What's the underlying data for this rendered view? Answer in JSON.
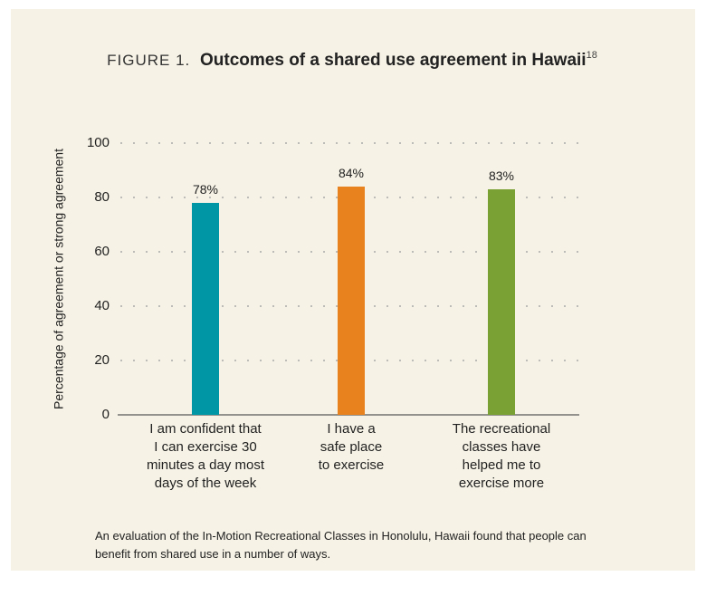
{
  "chart_data": {
    "type": "bar",
    "figure_label": "FIGURE 1.",
    "title": "Outcomes of a shared use agreement in Hawaii",
    "title_note": "18",
    "y_label": "Percentage of agreement or strong agreement",
    "categories": [
      "I am confident that\nI can exercise 30\nminutes a day most\ndays of the week",
      "I have a\nsafe place\nto exercise",
      "The recreational\nclasses have\nhelped me to\nexercise more"
    ],
    "values": [
      78,
      84,
      83
    ],
    "value_labels": [
      "78%",
      "84%",
      "83%"
    ],
    "colors": [
      "#0096a6",
      "#e8821f",
      "#79a133"
    ],
    "ylim": [
      0,
      100
    ],
    "yticks": [
      0,
      20,
      40,
      60,
      80,
      100
    ],
    "grid": true,
    "caption": "An evaluation of the In-Motion Recreational Classes in Honolulu, Hawaii found that people can benefit from shared use in a number of ways."
  }
}
